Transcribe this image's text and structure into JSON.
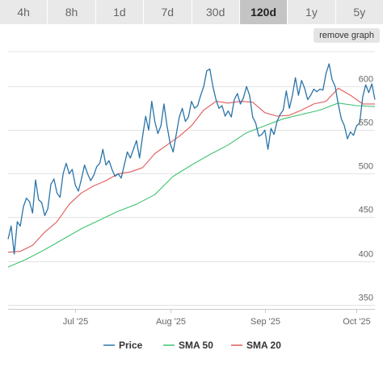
{
  "ranges": {
    "tabs": [
      "4h",
      "8h",
      "1d",
      "7d",
      "30d",
      "120d",
      "1y",
      "5y"
    ],
    "active": "120d"
  },
  "remove_graph_label": "remove graph",
  "chart_data": {
    "type": "line",
    "x_start": "2025-06-09",
    "x_end": "2025-10-07",
    "ylim": [
      345,
      640
    ],
    "y_ticks": [
      350,
      400,
      450,
      500,
      550,
      600
    ],
    "x_ticks": [
      {
        "date": "2025-07-01",
        "label": "Jul '25"
      },
      {
        "date": "2025-08-01",
        "label": "Aug '25"
      },
      {
        "date": "2025-09-01",
        "label": "Sep '25"
      },
      {
        "date": "2025-10-01",
        "label": "Oct '25"
      }
    ],
    "grid": true,
    "legend_position": "bottom",
    "series": [
      {
        "name": "Price",
        "color": "#2a74a8",
        "points": [
          [
            "2025-06-09",
            425
          ],
          [
            "2025-06-10",
            440
          ],
          [
            "2025-06-11",
            408
          ],
          [
            "2025-06-12",
            445
          ],
          [
            "2025-06-13",
            440
          ],
          [
            "2025-06-14",
            462
          ],
          [
            "2025-06-15",
            472
          ],
          [
            "2025-06-16",
            468
          ],
          [
            "2025-06-17",
            455
          ],
          [
            "2025-06-18",
            493
          ],
          [
            "2025-06-19",
            470
          ],
          [
            "2025-06-20",
            467
          ],
          [
            "2025-06-21",
            452
          ],
          [
            "2025-06-22",
            460
          ],
          [
            "2025-06-23",
            488
          ],
          [
            "2025-06-24",
            494
          ],
          [
            "2025-06-25",
            478
          ],
          [
            "2025-06-26",
            473
          ],
          [
            "2025-06-27",
            500
          ],
          [
            "2025-06-28",
            512
          ],
          [
            "2025-06-29",
            500
          ],
          [
            "2025-06-30",
            505
          ],
          [
            "2025-07-01",
            487
          ],
          [
            "2025-07-02",
            480
          ],
          [
            "2025-07-03",
            494
          ],
          [
            "2025-07-04",
            510
          ],
          [
            "2025-07-05",
            500
          ],
          [
            "2025-07-06",
            492
          ],
          [
            "2025-07-07",
            498
          ],
          [
            "2025-07-08",
            508
          ],
          [
            "2025-07-09",
            512
          ],
          [
            "2025-07-10",
            528
          ],
          [
            "2025-07-11",
            510
          ],
          [
            "2025-07-12",
            515
          ],
          [
            "2025-07-13",
            505
          ],
          [
            "2025-07-14",
            497
          ],
          [
            "2025-07-15",
            500
          ],
          [
            "2025-07-16",
            495
          ],
          [
            "2025-07-17",
            510
          ],
          [
            "2025-07-18",
            525
          ],
          [
            "2025-07-19",
            518
          ],
          [
            "2025-07-20",
            528
          ],
          [
            "2025-07-21",
            538
          ],
          [
            "2025-07-22",
            518
          ],
          [
            "2025-07-23",
            543
          ],
          [
            "2025-07-24",
            566
          ],
          [
            "2025-07-25",
            550
          ],
          [
            "2025-07-26",
            583
          ],
          [
            "2025-07-27",
            560
          ],
          [
            "2025-07-28",
            546
          ],
          [
            "2025-07-29",
            555
          ],
          [
            "2025-07-30",
            580
          ],
          [
            "2025-07-31",
            555
          ],
          [
            "2025-08-01",
            535
          ],
          [
            "2025-08-02",
            525
          ],
          [
            "2025-08-03",
            545
          ],
          [
            "2025-08-04",
            565
          ],
          [
            "2025-08-05",
            575
          ],
          [
            "2025-08-06",
            560
          ],
          [
            "2025-08-07",
            565
          ],
          [
            "2025-08-08",
            583
          ],
          [
            "2025-08-09",
            575
          ],
          [
            "2025-08-10",
            578
          ],
          [
            "2025-08-11",
            590
          ],
          [
            "2025-08-12",
            600
          ],
          [
            "2025-08-13",
            618
          ],
          [
            "2025-08-14",
            620
          ],
          [
            "2025-08-15",
            600
          ],
          [
            "2025-08-16",
            585
          ],
          [
            "2025-08-17",
            575
          ],
          [
            "2025-08-18",
            578
          ],
          [
            "2025-08-19",
            566
          ],
          [
            "2025-08-20",
            572
          ],
          [
            "2025-08-21",
            565
          ],
          [
            "2025-08-22",
            585
          ],
          [
            "2025-08-23",
            592
          ],
          [
            "2025-08-24",
            580
          ],
          [
            "2025-08-25",
            587
          ],
          [
            "2025-08-26",
            600
          ],
          [
            "2025-08-27",
            590
          ],
          [
            "2025-08-28",
            565
          ],
          [
            "2025-08-29",
            558
          ],
          [
            "2025-08-30",
            543
          ],
          [
            "2025-08-31",
            545
          ],
          [
            "2025-09-01",
            550
          ],
          [
            "2025-09-02",
            528
          ],
          [
            "2025-09-03",
            552
          ],
          [
            "2025-09-04",
            545
          ],
          [
            "2025-09-05",
            560
          ],
          [
            "2025-09-06",
            568
          ],
          [
            "2025-09-07",
            573
          ],
          [
            "2025-09-08",
            595
          ],
          [
            "2025-09-09",
            575
          ],
          [
            "2025-09-10",
            590
          ],
          [
            "2025-09-11",
            610
          ],
          [
            "2025-09-12",
            590
          ],
          [
            "2025-09-13",
            607
          ],
          [
            "2025-09-14",
            598
          ],
          [
            "2025-09-15",
            585
          ],
          [
            "2025-09-16",
            590
          ],
          [
            "2025-09-17",
            597
          ],
          [
            "2025-09-18",
            594
          ],
          [
            "2025-09-19",
            597
          ],
          [
            "2025-09-20",
            596
          ],
          [
            "2025-09-21",
            615
          ],
          [
            "2025-09-22",
            626
          ],
          [
            "2025-09-23",
            608
          ],
          [
            "2025-09-24",
            600
          ],
          [
            "2025-09-25",
            580
          ],
          [
            "2025-09-26",
            563
          ],
          [
            "2025-09-27",
            555
          ],
          [
            "2025-09-28",
            540
          ],
          [
            "2025-09-29",
            548
          ],
          [
            "2025-09-30",
            544
          ],
          [
            "2025-10-01",
            555
          ],
          [
            "2025-10-02",
            558
          ],
          [
            "2025-10-03",
            588
          ],
          [
            "2025-10-04",
            602
          ],
          [
            "2025-10-05",
            593
          ],
          [
            "2025-10-06",
            603
          ],
          [
            "2025-10-07",
            585
          ]
        ]
      },
      {
        "name": "SMA 50",
        "color": "#3dc36f",
        "points": [
          [
            "2025-06-09",
            393
          ],
          [
            "2025-06-15",
            402
          ],
          [
            "2025-06-21",
            413
          ],
          [
            "2025-06-27",
            425
          ],
          [
            "2025-07-03",
            437
          ],
          [
            "2025-07-09",
            447
          ],
          [
            "2025-07-15",
            457
          ],
          [
            "2025-07-21",
            465
          ],
          [
            "2025-07-27",
            476
          ],
          [
            "2025-08-02",
            497
          ],
          [
            "2025-08-08",
            510
          ],
          [
            "2025-08-14",
            522
          ],
          [
            "2025-08-20",
            533
          ],
          [
            "2025-08-26",
            547
          ],
          [
            "2025-09-01",
            555
          ],
          [
            "2025-09-07",
            563
          ],
          [
            "2025-09-13",
            568
          ],
          [
            "2025-09-19",
            573
          ],
          [
            "2025-09-25",
            581
          ],
          [
            "2025-10-01",
            578
          ],
          [
            "2025-10-07",
            577
          ]
        ]
      },
      {
        "name": "SMA 20",
        "color": "#e05a5a",
        "points": [
          [
            "2025-06-09",
            410
          ],
          [
            "2025-06-13",
            411
          ],
          [
            "2025-06-17",
            418
          ],
          [
            "2025-06-21",
            433
          ],
          [
            "2025-06-25",
            445
          ],
          [
            "2025-06-29",
            465
          ],
          [
            "2025-07-03",
            478
          ],
          [
            "2025-07-07",
            486
          ],
          [
            "2025-07-11",
            492
          ],
          [
            "2025-07-15",
            500
          ],
          [
            "2025-07-19",
            502
          ],
          [
            "2025-07-23",
            507
          ],
          [
            "2025-07-27",
            523
          ],
          [
            "2025-07-31",
            533
          ],
          [
            "2025-08-04",
            543
          ],
          [
            "2025-08-08",
            555
          ],
          [
            "2025-08-12",
            573
          ],
          [
            "2025-08-16",
            583
          ],
          [
            "2025-08-20",
            581
          ],
          [
            "2025-08-24",
            583
          ],
          [
            "2025-08-28",
            582
          ],
          [
            "2025-09-01",
            570
          ],
          [
            "2025-09-05",
            566
          ],
          [
            "2025-09-09",
            567
          ],
          [
            "2025-09-13",
            573
          ],
          [
            "2025-09-17",
            580
          ],
          [
            "2025-09-21",
            583
          ],
          [
            "2025-09-25",
            598
          ],
          [
            "2025-09-29",
            590
          ],
          [
            "2025-10-03",
            580
          ],
          [
            "2025-10-07",
            580
          ]
        ]
      }
    ]
  }
}
